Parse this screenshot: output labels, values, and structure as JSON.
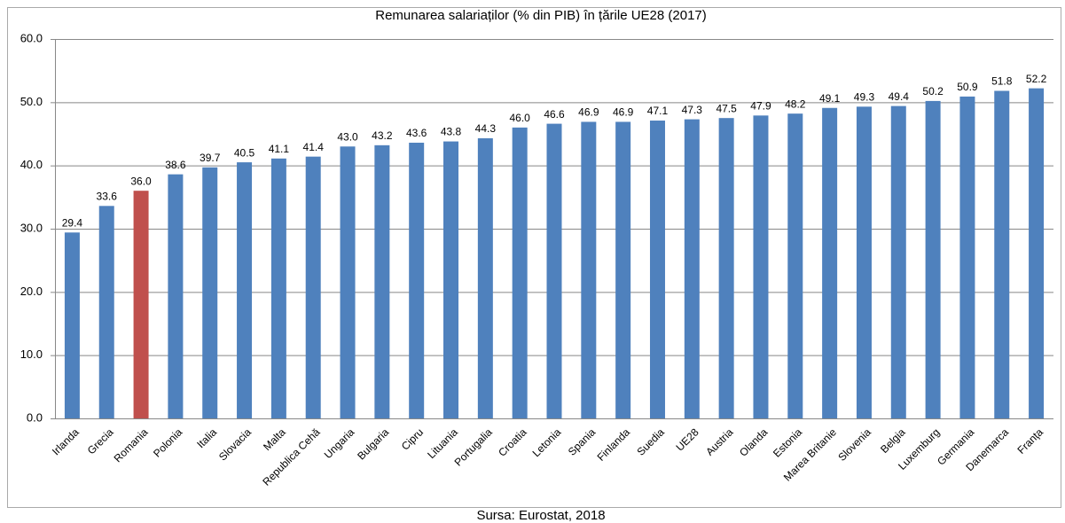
{
  "chart_data": {
    "type": "bar",
    "title": "Remunarea salariaților (% din PIB) în țările UE28 (2017)",
    "source": "Sursa: Eurostat, 2018",
    "categories": [
      "Irlanda",
      "Grecia",
      "Romania",
      "Polonia",
      "Italia",
      "Slovacia",
      "Malta",
      "Republica Cehă",
      "Ungaria",
      "Bulgaria",
      "Cipru",
      "Lituania",
      "Portugalia",
      "Croatia",
      "Letonia",
      "Spania",
      "Finlanda",
      "Suedia",
      "UE28",
      "Austria",
      "Olanda",
      "Estonia",
      "Marea Britanie",
      "Slovenia",
      "Belgia",
      "Luxemburg",
      "Germania",
      "Danemarca",
      "Franța"
    ],
    "values": [
      29.4,
      33.6,
      36.0,
      38.6,
      39.7,
      40.5,
      41.1,
      41.4,
      43.0,
      43.2,
      43.6,
      43.8,
      44.3,
      46.0,
      46.6,
      46.9,
      46.9,
      47.1,
      47.3,
      47.5,
      47.9,
      48.2,
      49.1,
      49.3,
      49.4,
      50.2,
      50.9,
      51.8,
      52.2
    ],
    "value_labels": [
      "29.4",
      "33.6",
      "36.0",
      "38.6",
      "39.7",
      "40.5",
      "41.1",
      "41.4",
      "43.0",
      "43.2",
      "43.6",
      "43.8",
      "44.3",
      "46.0",
      "46.6",
      "46.9",
      "46.9",
      "47.1",
      "47.3",
      "47.5",
      "47.9",
      "48.2",
      "49.1",
      "49.3",
      "49.4",
      "50.2",
      "50.9",
      "51.8",
      "52.2"
    ],
    "colors": [
      "#4f81bd",
      "#4f81bd",
      "#c0504d",
      "#4f81bd",
      "#4f81bd",
      "#4f81bd",
      "#4f81bd",
      "#4f81bd",
      "#4f81bd",
      "#4f81bd",
      "#4f81bd",
      "#4f81bd",
      "#4f81bd",
      "#4f81bd",
      "#4f81bd",
      "#4f81bd",
      "#4f81bd",
      "#4f81bd",
      "#4f81bd",
      "#4f81bd",
      "#4f81bd",
      "#4f81bd",
      "#4f81bd",
      "#4f81bd",
      "#4f81bd",
      "#4f81bd",
      "#4f81bd",
      "#4f81bd",
      "#4f81bd"
    ],
    "ylim": [
      0,
      60
    ],
    "yticks": [
      {
        "value": 0,
        "label": "0.0"
      },
      {
        "value": 10,
        "label": "10.0"
      },
      {
        "value": 20,
        "label": "20.0"
      },
      {
        "value": 30,
        "label": "30.0"
      },
      {
        "value": 40,
        "label": "40.0"
      },
      {
        "value": 50,
        "label": "50.0"
      },
      {
        "value": 60,
        "label": "60.0"
      }
    ],
    "grid": true
  }
}
